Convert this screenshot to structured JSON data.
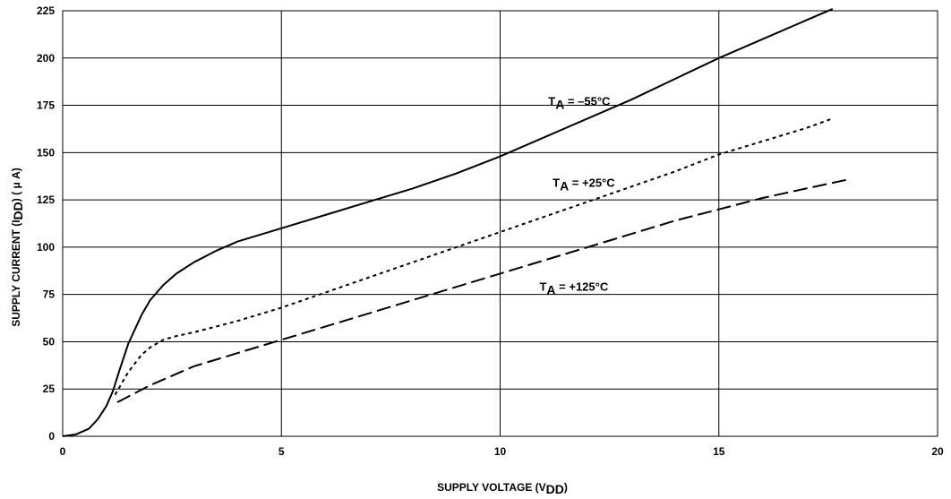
{
  "chart_data": {
    "type": "line",
    "title": "",
    "xlabel": "SUPPLY VOLTAGE (V",
    "xlabel_sub": "DD",
    "xlabel_end": ")",
    "ylabel": "SUPPLY CURRENT (I",
    "ylabel_sub": "DD",
    "ylabel_end": ") ( μ A)",
    "xlim": [
      0,
      20
    ],
    "ylim": [
      0,
      225
    ],
    "xticks": [
      "0",
      "5",
      "10",
      "15",
      "20"
    ],
    "yticks": [
      "0",
      "25",
      "50",
      "75",
      "100",
      "125",
      "150",
      "175",
      "200",
      "225"
    ],
    "grid": true,
    "series": [
      {
        "label_main": "T",
        "label_sub": "A",
        "label_rest": " = –55°C",
        "style": "solid",
        "color": "#000000",
        "label_at": [
          11.1,
          175
        ],
        "x": [
          0,
          0.3,
          0.6,
          0.8,
          1.0,
          1.15,
          1.3,
          1.5,
          1.8,
          2.0,
          2.3,
          2.6,
          3.0,
          3.5,
          4.0,
          5.0,
          6.0,
          7.0,
          8.0,
          9.0,
          10.0,
          11.0,
          12.0,
          13.0,
          14.0,
          15.0,
          16.0,
          17.0,
          17.6
        ],
        "y": [
          0,
          1,
          4,
          9,
          16,
          24,
          35,
          49,
          64,
          72,
          80,
          86,
          92,
          98,
          103,
          110,
          117,
          124,
          131,
          139,
          148,
          158,
          168,
          178,
          189,
          200,
          210,
          220,
          226
        ]
      },
      {
        "label_main": "T",
        "label_sub": "A",
        "label_rest": " = +25°C",
        "style": "dotted",
        "color": "#000000",
        "label_at": [
          11.2,
          132
        ],
        "x": [
          1.2,
          1.5,
          1.8,
          2.0,
          2.3,
          2.6,
          3.0,
          3.5,
          4.0,
          5.0,
          6.0,
          7.0,
          8.0,
          9.0,
          10.0,
          11.0,
          12.0,
          13.0,
          14.0,
          15.0,
          16.0,
          17.0,
          17.6
        ],
        "y": [
          22,
          34,
          43,
          47,
          51,
          53,
          55,
          58,
          61,
          68,
          76,
          84,
          92,
          100,
          108,
          116,
          124,
          132,
          140,
          149,
          156,
          163,
          168
        ]
      },
      {
        "label_main": "T",
        "label_sub": "A",
        "label_rest": " = +125°C",
        "style": "dashed",
        "color": "#000000",
        "label_at": [
          10.9,
          77
        ],
        "x": [
          1.25,
          2.0,
          3.0,
          4.0,
          5.0,
          6.0,
          7.0,
          8.0,
          9.0,
          10.0,
          11.0,
          12.0,
          13.0,
          14.0,
          15.0,
          16.0,
          17.0,
          18.0
        ],
        "y": [
          18,
          27,
          37,
          44,
          51,
          58,
          65,
          72,
          79,
          86,
          93,
          100,
          107,
          114,
          120,
          126,
          131,
          136
        ]
      }
    ]
  }
}
